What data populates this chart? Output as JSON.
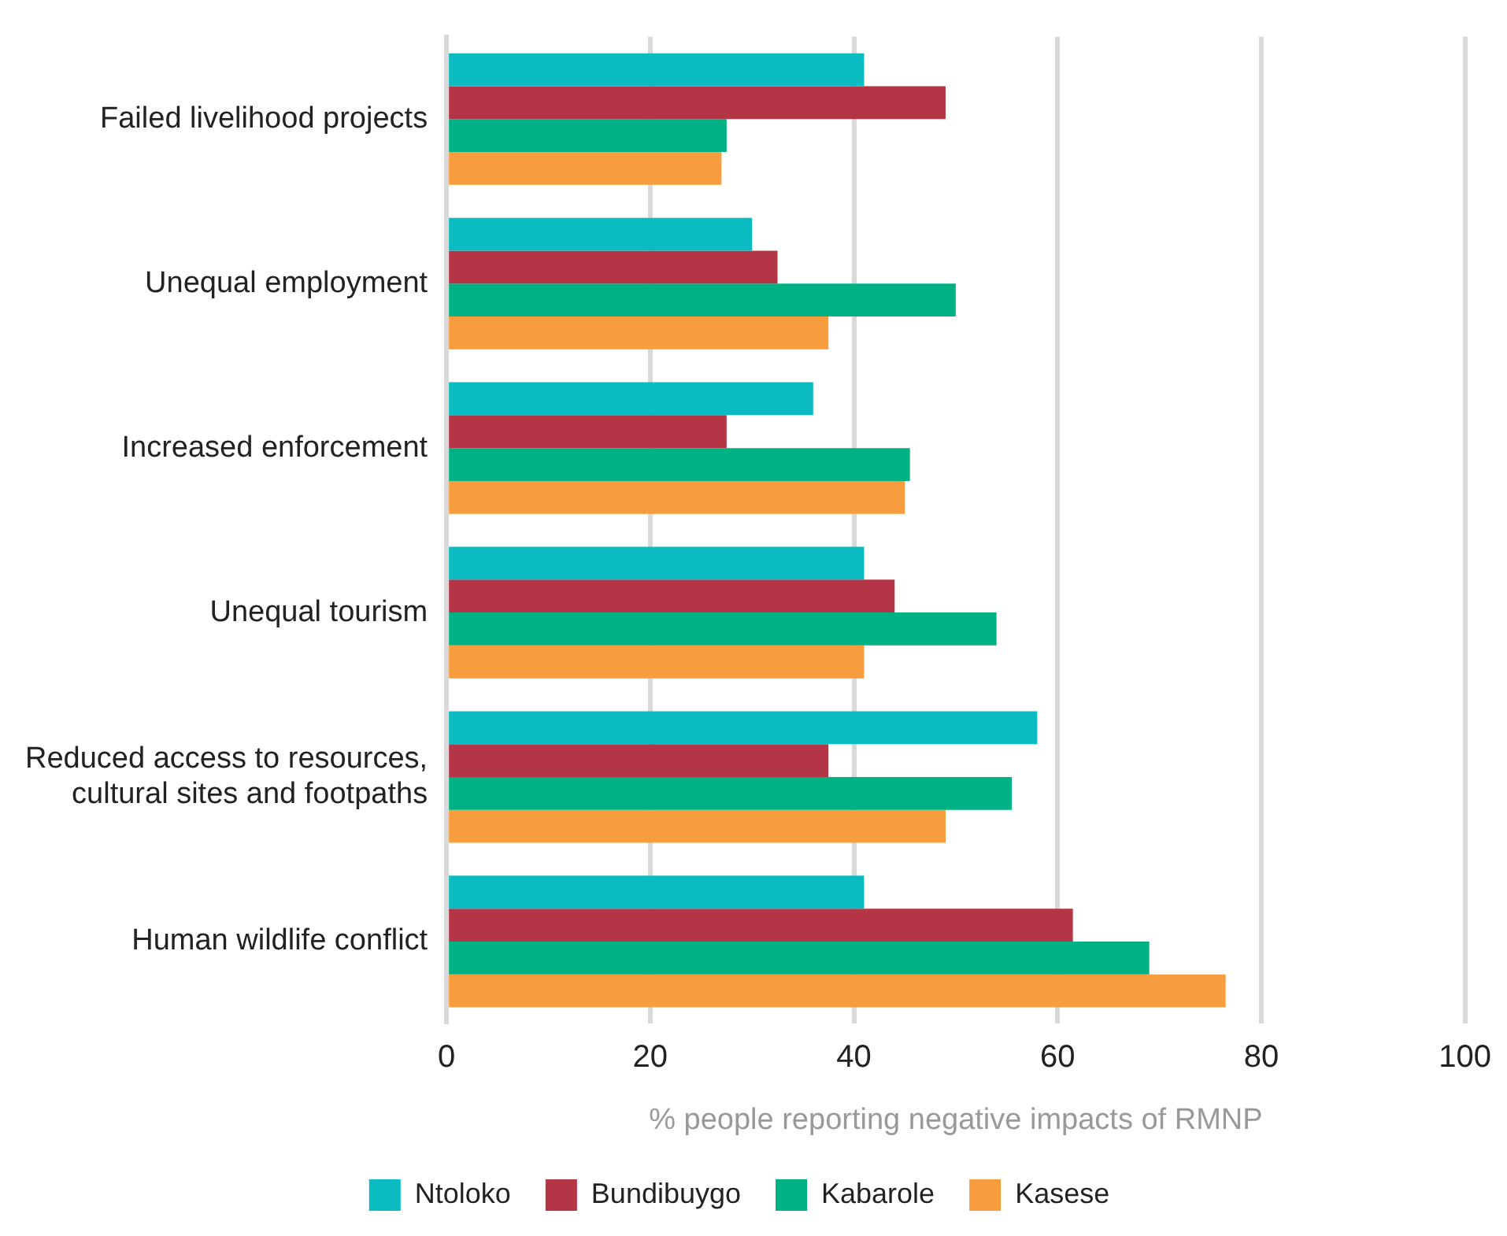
{
  "chart_data": {
    "type": "bar",
    "orientation": "horizontal",
    "xlabel": "% people reporting negative impacts of RMNP",
    "categories": [
      "Failed livelihood projects",
      "Unequal employment",
      "Increased enforcement",
      "Unequal tourism",
      "Reduced access to resources, cultural sites and footpaths",
      "Human wildlife conflict"
    ],
    "series": [
      {
        "name": "Ntoloko",
        "color": "#0abbc1",
        "values": [
          41,
          30,
          36,
          41,
          58,
          41
        ]
      },
      {
        "name": "Bundibuygo",
        "color": "#b33546",
        "values": [
          49,
          32.5,
          27.5,
          44,
          37.5,
          61.5
        ]
      },
      {
        "name": "Kabarole",
        "color": "#00b283",
        "values": [
          27.5,
          50,
          45.5,
          54,
          55.5,
          69
        ]
      },
      {
        "name": "Kasese",
        "color": "#f89d3d",
        "values": [
          27,
          37.5,
          45,
          41,
          49,
          76.5
        ]
      }
    ],
    "xlim": [
      0,
      100
    ],
    "xticks": [
      0,
      20,
      40,
      60,
      80,
      100
    ],
    "grid": "x",
    "legend": "bottom"
  }
}
